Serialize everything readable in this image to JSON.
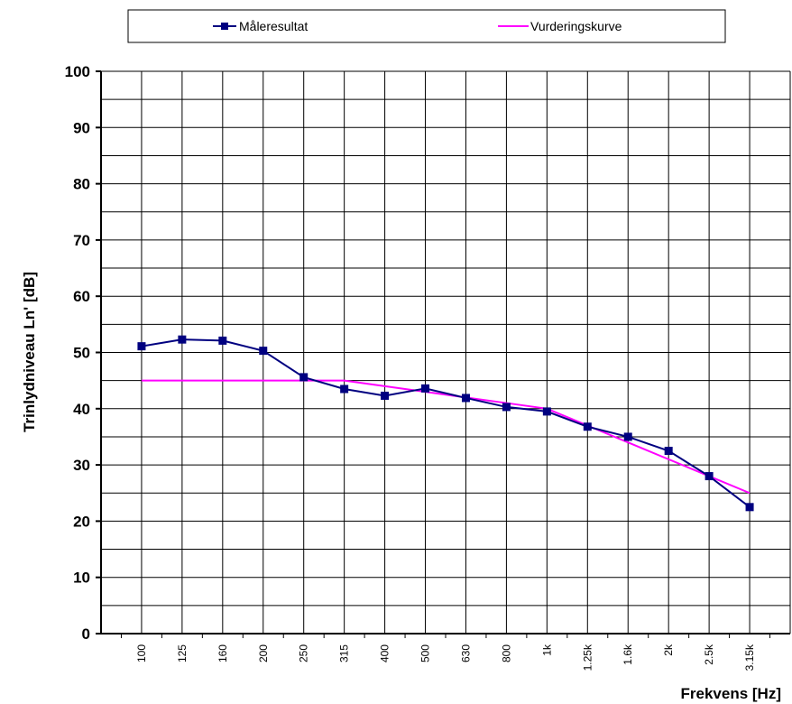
{
  "chart_data": {
    "type": "line",
    "xlabel": "Frekvens [Hz]",
    "ylabel": "Trinlydniveau Ln' [dB]",
    "ylim": [
      0,
      100
    ],
    "y_ticks": [
      "0",
      "10",
      "20",
      "30",
      "40",
      "50",
      "60",
      "70",
      "80",
      "90",
      "100"
    ],
    "y_minor_step": 5,
    "grid": true,
    "legend": "top",
    "categories": [
      "100",
      "125",
      "160",
      "200",
      "250",
      "315",
      "400",
      "500",
      "630",
      "800",
      "1k",
      "1.25k",
      "1.6k",
      "2k",
      "2.5k",
      "3.15k"
    ],
    "series": [
      {
        "name": "Måleresultat",
        "color": "#000080",
        "marker": "square",
        "values": [
          51.1,
          52.3,
          52.1,
          50.3,
          45.6,
          43.5,
          42.3,
          43.6,
          41.9,
          40.3,
          39.5,
          36.8,
          35.0,
          32.5,
          28.0,
          22.5
        ]
      },
      {
        "name": "Vurderingskurve",
        "color": "#ff00ff",
        "marker": "none",
        "values": [
          45,
          45,
          45,
          45,
          45,
          45,
          44,
          43,
          42,
          41,
          40,
          37,
          34,
          31,
          28,
          25
        ]
      }
    ]
  }
}
